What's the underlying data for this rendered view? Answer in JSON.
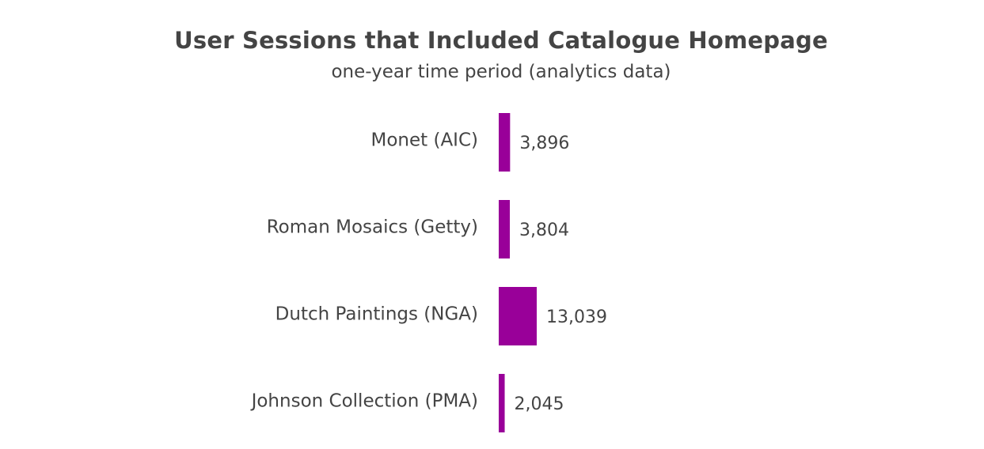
{
  "chart_data": {
    "type": "bar",
    "orientation": "horizontal",
    "title": "User Sessions that Included Catalogue Homepage",
    "subtitle": "one-year time period (analytics data)",
    "categories": [
      "Monet (AIC)",
      "Roman Mosaics (Getty)",
      "Dutch Paintings (NGA)",
      "Johnson Collection (PMA)"
    ],
    "values": [
      3896,
      3804,
      13039,
      2045
    ],
    "value_labels": [
      "3,896",
      "3,804",
      "13,039",
      "2,045"
    ],
    "xlabel": "",
    "ylabel": "",
    "grid": false,
    "legend": "none",
    "bar_color": "#990099",
    "text_color": "#444444"
  }
}
